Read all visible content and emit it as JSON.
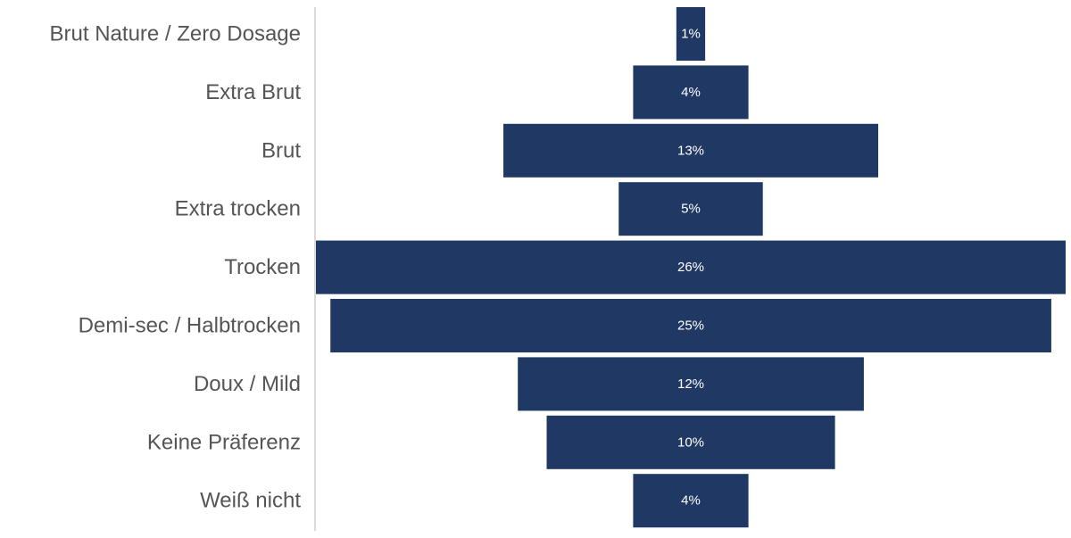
{
  "chart_data": {
    "type": "bar",
    "orientation": "horizontal-centered",
    "title": "",
    "xlabel": "",
    "ylabel": "",
    "categories": [
      "Brut Nature / Zero Dosage",
      "Extra Brut",
      "Brut",
      "Extra trocken",
      "Trocken",
      "Demi-sec / Halbtrocken",
      "Doux / Mild",
      "Keine Präferenz",
      "Weiß nicht"
    ],
    "values": [
      1,
      4,
      13,
      5,
      26,
      25,
      12,
      10,
      4
    ],
    "value_labels": [
      "1%",
      "4%",
      "13%",
      "5%",
      "26%",
      "25%",
      "12%",
      "10%",
      "4%"
    ],
    "xlim": [
      0,
      26
    ],
    "bar_color": "#1f3864",
    "axis_color": "#d9d9d9",
    "label_color": "#555555",
    "value_label_color": "#ffffff",
    "grid": false,
    "legend": "none"
  }
}
